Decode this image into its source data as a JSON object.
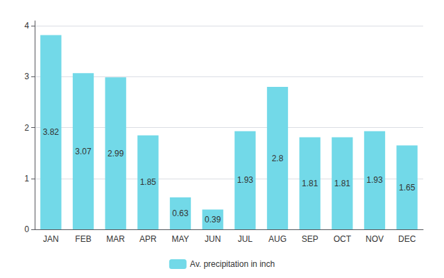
{
  "chart_data": {
    "type": "bar",
    "categories": [
      "JAN",
      "FEB",
      "MAR",
      "APR",
      "MAY",
      "JUN",
      "JUL",
      "AUG",
      "SEP",
      "OCT",
      "NOV",
      "DEC"
    ],
    "series": [
      {
        "name": "Av. precipitation in inch",
        "color": "#72D9E8",
        "values": [
          3.82,
          3.07,
          2.99,
          1.85,
          0.63,
          0.39,
          1.93,
          2.8,
          1.81,
          1.81,
          1.93,
          1.65
        ]
      }
    ],
    "ylim": [
      0,
      4.1
    ],
    "yticks": [
      0,
      1,
      2,
      3,
      4
    ],
    "grid": true,
    "legend": "bottom",
    "data_labels": true
  }
}
